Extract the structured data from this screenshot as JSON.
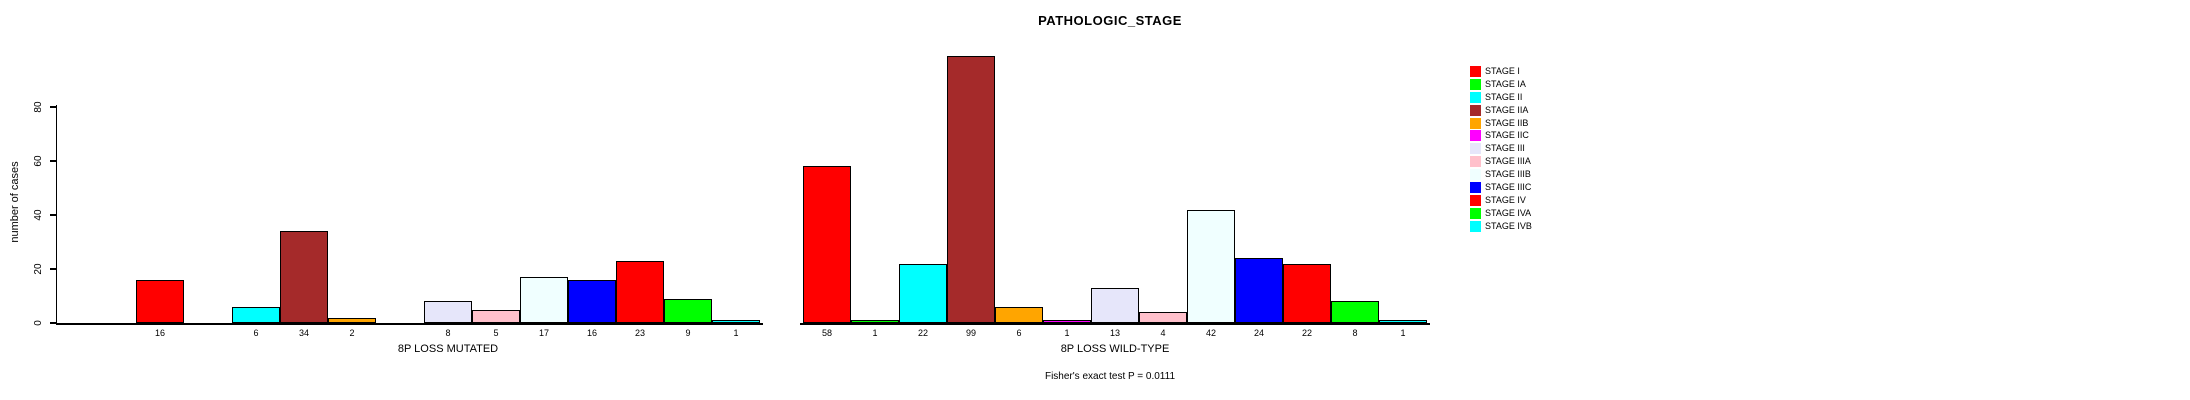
{
  "title": "PATHOLOGIC_STAGE",
  "ylabel": "number of cases",
  "footer": "Fisher's exact test P = 0.0111",
  "legend": {
    "items": [
      {
        "label": "STAGE I",
        "color": "#FF0000"
      },
      {
        "label": "STAGE IA",
        "color": "#00FF00"
      },
      {
        "label": "STAGE II",
        "color": "#00FFFF"
      },
      {
        "label": "STAGE IIA",
        "color": "#A52A2A"
      },
      {
        "label": "STAGE IIB",
        "color": "#FFA500"
      },
      {
        "label": "STAGE IIC",
        "color": "#FF00FF"
      },
      {
        "label": "STAGE III",
        "color": "#E6E6FA"
      },
      {
        "label": "STAGE IIIA",
        "color": "#FFC0CB"
      },
      {
        "label": "STAGE IIIB",
        "color": "#F0FFFF"
      },
      {
        "label": "STAGE IIIC",
        "color": "#0000FF"
      },
      {
        "label": "STAGE IV",
        "color": "#FF0000"
      },
      {
        "label": "STAGE IVA",
        "color": "#00FF00"
      },
      {
        "label": "STAGE IVB",
        "color": "#00FFFF"
      }
    ]
  },
  "chart_data": {
    "type": "bar",
    "title": "PATHOLOGIC_STAGE",
    "ylabel": "number of cases",
    "xlabel": "",
    "yticks": [
      0,
      20,
      40,
      60,
      80
    ],
    "ylim": [
      0,
      99
    ],
    "grid": false,
    "legend_position": "right",
    "categories": [
      "STAGE I",
      "STAGE IA",
      "STAGE II",
      "STAGE IIA",
      "STAGE IIB",
      "STAGE IIC",
      "STAGE III",
      "STAGE IIIA",
      "STAGE IIIB",
      "STAGE IIIC",
      "STAGE IV",
      "STAGE IVA",
      "STAGE IVB"
    ],
    "colors": [
      "#FF0000",
      "#00FF00",
      "#00FFFF",
      "#A52A2A",
      "#FFA500",
      "#FF00FF",
      "#E6E6FA",
      "#FFC0CB",
      "#F0FFFF",
      "#0000FF",
      "#FF0000",
      "#00FF00",
      "#00FFFF"
    ],
    "series": [
      {
        "name": "8P LOSS MUTATED",
        "values": [
          16,
          0,
          6,
          34,
          2,
          0,
          8,
          5,
          17,
          16,
          23,
          9,
          1
        ]
      },
      {
        "name": "8P LOSS WILD-TYPE",
        "values": [
          58,
          1,
          22,
          99,
          6,
          1,
          13,
          4,
          42,
          24,
          22,
          8,
          1
        ]
      }
    ],
    "annotation": "Fisher's exact test P = 0.0111"
  }
}
